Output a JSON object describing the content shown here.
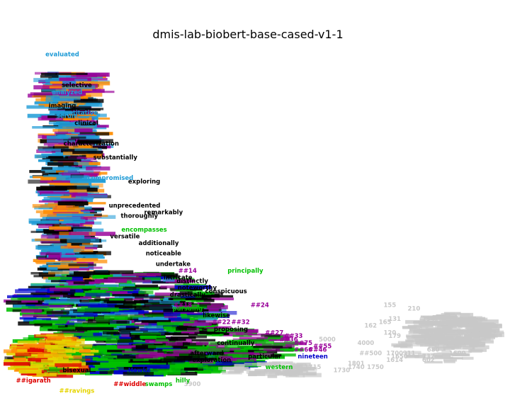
{
  "chart_data": {
    "type": "scatter",
    "title": "dmis-lab-biobert-base-cased-v1-1",
    "xlabel": "",
    "ylabel": "",
    "axes_visible": false,
    "grid": false,
    "colors": {
      "black": "#000000",
      "blue": "#1f9bd6",
      "green": "#00c000",
      "purple": "#990099",
      "grey": "#c8c8c8",
      "yellow": "#e6d400",
      "red": "#dd0000",
      "dark_blue": "#0000cc",
      "orange": "#ff8c00"
    },
    "points": [
      {
        "t": "evaluated",
        "x": 0.1,
        "y": 0.96,
        "c": "blue"
      },
      {
        "t": "selective",
        "x": 0.13,
        "y": 0.87,
        "c": "black"
      },
      {
        "t": "analyzed",
        "x": 0.11,
        "y": 0.85,
        "c": "blue"
      },
      {
        "t": "imaging",
        "x": 0.1,
        "y": 0.81,
        "c": "black"
      },
      {
        "t": "quantitative",
        "x": 0.13,
        "y": 0.79,
        "c": "blue"
      },
      {
        "t": "serum",
        "x": 0.11,
        "y": 0.78,
        "c": "blue"
      },
      {
        "t": "clinical",
        "x": 0.15,
        "y": 0.76,
        "c": "black"
      },
      {
        "t": "characterization",
        "x": 0.16,
        "y": 0.7,
        "c": "black"
      },
      {
        "t": "substantially",
        "x": 0.21,
        "y": 0.66,
        "c": "black"
      },
      {
        "t": "exploring",
        "x": 0.27,
        "y": 0.59,
        "c": "black"
      },
      {
        "t": "compromised",
        "x": 0.2,
        "y": 0.6,
        "c": "blue"
      },
      {
        "t": "unprecedented",
        "x": 0.25,
        "y": 0.52,
        "c": "black"
      },
      {
        "t": "remarkably",
        "x": 0.31,
        "y": 0.5,
        "c": "black"
      },
      {
        "t": "thoroughly",
        "x": 0.26,
        "y": 0.49,
        "c": "black"
      },
      {
        "t": "encompasses",
        "x": 0.27,
        "y": 0.45,
        "c": "green"
      },
      {
        "t": "versatile",
        "x": 0.23,
        "y": 0.43,
        "c": "black"
      },
      {
        "t": "additionally",
        "x": 0.3,
        "y": 0.41,
        "c": "black"
      },
      {
        "t": "noticeable",
        "x": 0.31,
        "y": 0.38,
        "c": "black"
      },
      {
        "t": "undertake",
        "x": 0.33,
        "y": 0.35,
        "c": "black"
      },
      {
        "t": "principally",
        "x": 0.48,
        "y": 0.33,
        "c": "green"
      },
      {
        "t": "intricate",
        "x": 0.34,
        "y": 0.31,
        "c": "black"
      },
      {
        "t": "distinctly",
        "x": 0.37,
        "y": 0.3,
        "c": "black"
      },
      {
        "t": "noteworthy",
        "x": 0.38,
        "y": 0.28,
        "c": "black"
      },
      {
        "t": "conspicuous",
        "x": 0.44,
        "y": 0.27,
        "c": "black"
      },
      {
        "t": "drastically",
        "x": 0.36,
        "y": 0.26,
        "c": "black"
      },
      {
        "t": "##14",
        "x": 0.36,
        "y": 0.33,
        "c": "purple"
      },
      {
        "t": "##18",
        "x": 0.35,
        "y": 0.23,
        "c": "purple"
      },
      {
        "t": "##24",
        "x": 0.51,
        "y": 0.23,
        "c": "purple"
      },
      {
        "t": "pursuing",
        "x": 0.36,
        "y": 0.22,
        "c": "green"
      },
      {
        "t": "likewise",
        "x": 0.42,
        "y": 0.2,
        "c": "black"
      },
      {
        "t": "##22",
        "x": 0.43,
        "y": 0.18,
        "c": "purple"
      },
      {
        "t": "##32",
        "x": 0.47,
        "y": 0.18,
        "c": "purple"
      },
      {
        "t": "proposing",
        "x": 0.45,
        "y": 0.16,
        "c": "black"
      },
      {
        "t": "##27",
        "x": 0.54,
        "y": 0.15,
        "c": "purple"
      },
      {
        "t": "##33",
        "x": 0.58,
        "y": 0.14,
        "c": "purple"
      },
      {
        "t": "##36",
        "x": 0.57,
        "y": 0.13,
        "c": "purple"
      },
      {
        "t": "##75",
        "x": 0.6,
        "y": 0.12,
        "c": "purple"
      },
      {
        "t": "##55",
        "x": 0.64,
        "y": 0.11,
        "c": "purple"
      },
      {
        "t": "##46",
        "x": 0.63,
        "y": 0.1,
        "c": "purple"
      },
      {
        "t": "##66",
        "x": 0.6,
        "y": 0.1,
        "c": "purple"
      },
      {
        "t": "nineteen",
        "x": 0.62,
        "y": 0.08,
        "c": "dark_blue"
      },
      {
        "t": "particular",
        "x": 0.52,
        "y": 0.08,
        "c": "black"
      },
      {
        "t": "exploration",
        "x": 0.41,
        "y": 0.07,
        "c": "black"
      },
      {
        "t": "afterward",
        "x": 0.4,
        "y": 0.09,
        "c": "black"
      },
      {
        "t": "continually",
        "x": 0.46,
        "y": 0.12,
        "c": "black"
      },
      {
        "t": "western",
        "x": 0.55,
        "y": 0.05,
        "c": "green"
      },
      {
        "t": "swamps",
        "x": 0.3,
        "y": 0.0,
        "c": "green"
      },
      {
        "t": "Hawke",
        "x": 0.26,
        "y": 0.04,
        "c": "dark_blue"
      },
      {
        "t": "hilly",
        "x": 0.35,
        "y": 0.01,
        "c": "green"
      },
      {
        "t": "bisexual",
        "x": 0.13,
        "y": 0.04,
        "c": "black"
      },
      {
        "t": "##widdle",
        "x": 0.24,
        "y": 0.0,
        "c": "red"
      },
      {
        "t": "##ravings",
        "x": 0.13,
        "y": -0.02,
        "c": "yellow"
      },
      {
        "t": "##igarath",
        "x": 0.04,
        "y": 0.01,
        "c": "red"
      },
      {
        "t": "155",
        "x": 0.78,
        "y": 0.23,
        "c": "grey"
      },
      {
        "t": "210",
        "x": 0.83,
        "y": 0.22,
        "c": "grey"
      },
      {
        "t": "131",
        "x": 0.79,
        "y": 0.19,
        "c": "grey"
      },
      {
        "t": "134",
        "x": 0.86,
        "y": 0.19,
        "c": "grey"
      },
      {
        "t": "165",
        "x": 0.77,
        "y": 0.18,
        "c": "grey"
      },
      {
        "t": "162",
        "x": 0.74,
        "y": 0.17,
        "c": "grey"
      },
      {
        "t": "120",
        "x": 0.78,
        "y": 0.15,
        "c": "grey"
      },
      {
        "t": "179",
        "x": 0.79,
        "y": 0.14,
        "c": "grey"
      },
      {
        "t": "5000",
        "x": 0.65,
        "y": 0.13,
        "c": "grey"
      },
      {
        "t": "4000",
        "x": 0.73,
        "y": 0.12,
        "c": "grey"
      },
      {
        "t": "##500",
        "x": 0.74,
        "y": 0.09,
        "c": "grey"
      },
      {
        "t": "1700",
        "x": 0.79,
        "y": 0.09,
        "c": "grey"
      },
      {
        "t": "911",
        "x": 0.82,
        "y": 0.09,
        "c": "grey"
      },
      {
        "t": "1650",
        "x": 0.8,
        "y": 0.08,
        "c": "grey"
      },
      {
        "t": "1614",
        "x": 0.79,
        "y": 0.07,
        "c": "grey"
      },
      {
        "t": "737",
        "x": 0.86,
        "y": 0.08,
        "c": "grey"
      },
      {
        "t": "602",
        "x": 0.86,
        "y": 0.07,
        "c": "grey"
      },
      {
        "t": "680",
        "x": 0.87,
        "y": 0.1,
        "c": "grey"
      },
      {
        "t": "1801",
        "x": 0.71,
        "y": 0.06,
        "c": "grey"
      },
      {
        "t": "1750",
        "x": 0.75,
        "y": 0.05,
        "c": "grey"
      },
      {
        "t": "1715",
        "x": 0.62,
        "y": 0.05,
        "c": "grey"
      },
      {
        "t": "1730",
        "x": 0.68,
        "y": 0.04,
        "c": "grey"
      },
      {
        "t": "1740",
        "x": 0.71,
        "y": 0.05,
        "c": "grey"
      },
      {
        "t": "395",
        "x": 0.93,
        "y": 0.15,
        "c": "grey"
      },
      {
        "t": "1600",
        "x": 0.92,
        "y": 0.09,
        "c": "grey"
      },
      {
        "t": "3900",
        "x": 0.37,
        "y": 0.0,
        "c": "grey"
      }
    ]
  }
}
